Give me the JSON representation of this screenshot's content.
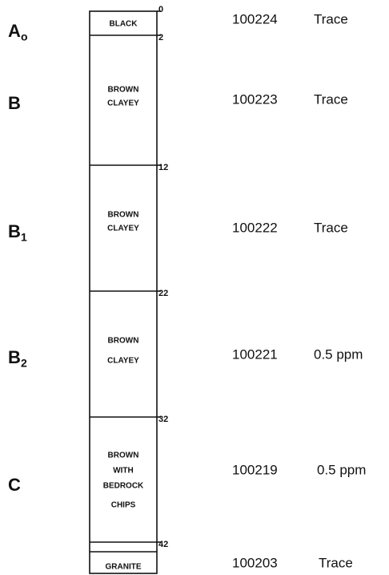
{
  "layers": [
    {
      "horizon": "A",
      "horizon_sub": "o",
      "description": [
        "BLACK"
      ],
      "sample": "100224",
      "result": "Trace"
    },
    {
      "horizon": "B",
      "description": [
        "BROWN",
        "CLAYEY"
      ],
      "sample": "100223",
      "result": "Trace"
    },
    {
      "horizon": "B",
      "horizon_sub": "1",
      "description": [
        "BROWN",
        "CLAYEY"
      ],
      "sample": "100222",
      "result": "Trace"
    },
    {
      "horizon": "B",
      "horizon_sub": "2",
      "description": [
        "BROWN",
        "CLAYEY"
      ],
      "sample": "100221",
      "result": "0.5 ppm"
    },
    {
      "horizon": "C",
      "description": [
        "BROWN",
        "WITH",
        "BEDROCK",
        "CHIPS"
      ],
      "sample": "100219",
      "result": "0.5 ppm"
    },
    {
      "description": [
        "GRANITE"
      ],
      "sample": "100203",
      "result": "Trace"
    }
  ],
  "depths": [
    0,
    2,
    12,
    22,
    32,
    42
  ]
}
